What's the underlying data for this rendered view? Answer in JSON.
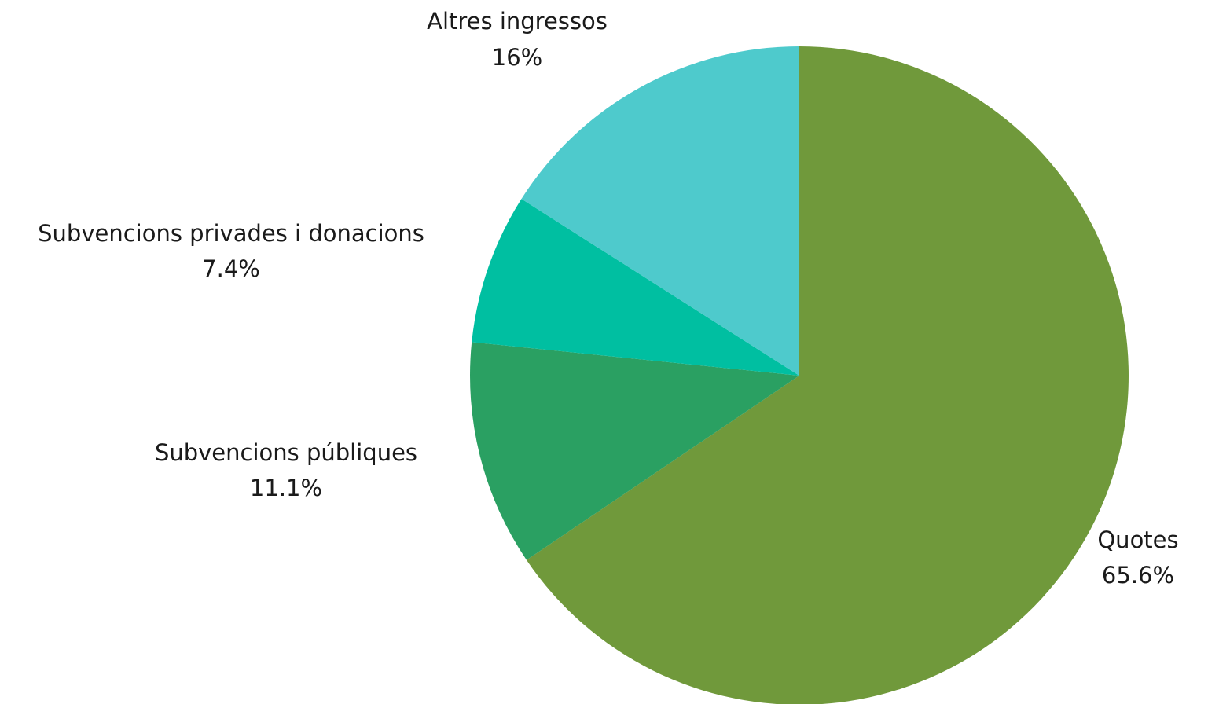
{
  "chart_data": {
    "type": "pie",
    "start_angle_deg": 0,
    "direction": "clockwise",
    "slices": [
      {
        "label": "Quotes",
        "value": 65.6,
        "value_label": "65.6%",
        "color": "#70993b"
      },
      {
        "label": "Subvencions públiques",
        "value": 11.1,
        "value_label": "11.1%",
        "color": "#2aa062"
      },
      {
        "label": "Subvencions privades i donacions",
        "value": 7.4,
        "value_label": "7.4%",
        "color": "#00bfa1"
      },
      {
        "label": "Altres ingressos",
        "value": 16,
        "value_label": "16%",
        "color": "#4ecacc"
      }
    ]
  }
}
